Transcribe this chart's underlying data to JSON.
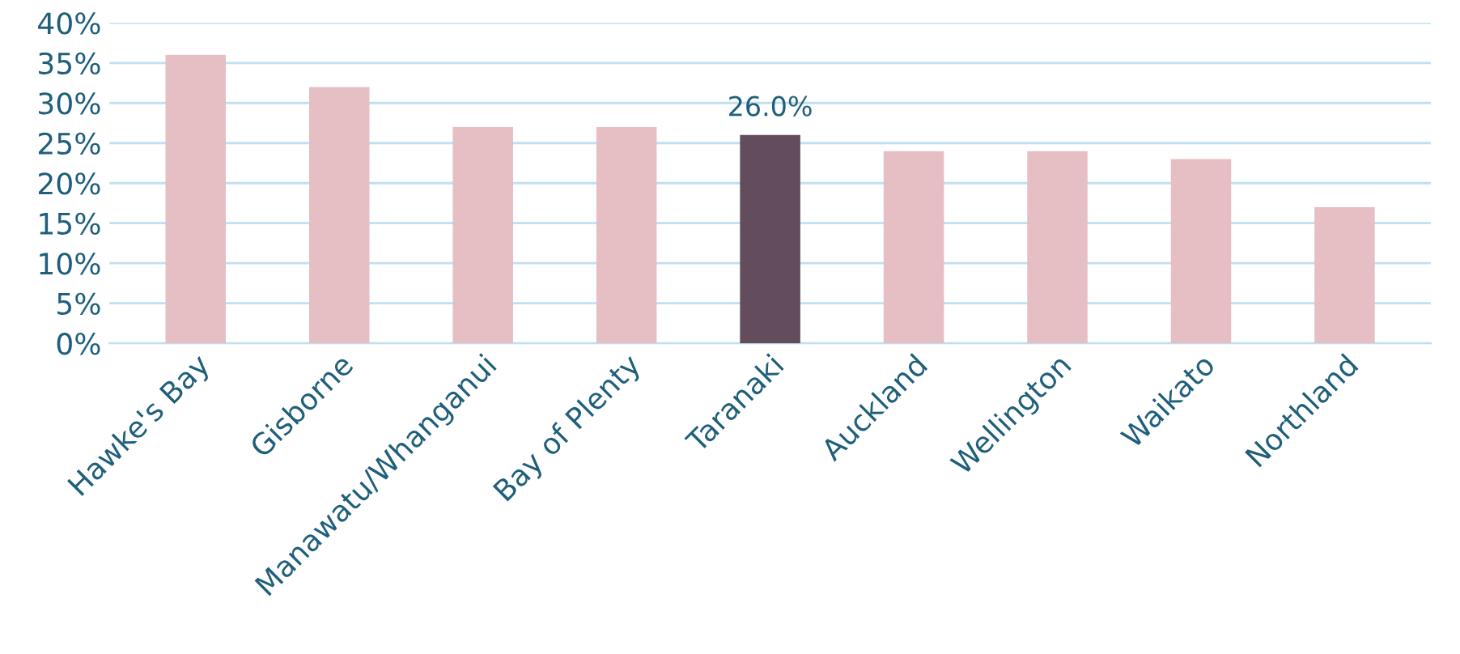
{
  "chart_data": {
    "type": "bar",
    "categories": [
      "Hawke's Bay",
      "Gisborne",
      "Manawatu/Whanganui",
      "Bay of Plenty",
      "Taranaki",
      "Auckland",
      "Wellington",
      "Waikato",
      "Northland"
    ],
    "values": [
      36,
      32,
      27,
      27,
      26,
      24,
      24,
      23,
      17
    ],
    "colors": [
      "#e6bfc4",
      "#e6bfc4",
      "#e6bfc4",
      "#e6bfc4",
      "#634d5c",
      "#e6bfc4",
      "#e6bfc4",
      "#e6bfc4",
      "#e6bfc4"
    ],
    "value_labels": [
      null,
      null,
      null,
      null,
      "26.0%",
      null,
      null,
      null,
      null
    ],
    "ylim": [
      0,
      40
    ],
    "yticks": [
      {
        "value": 0,
        "label": "0%"
      },
      {
        "value": 5,
        "label": "5%"
      },
      {
        "value": 10,
        "label": "10%"
      },
      {
        "value": 15,
        "label": "15%"
      },
      {
        "value": 20,
        "label": "20%"
      },
      {
        "value": 25,
        "label": "25%"
      },
      {
        "value": 30,
        "label": "30%"
      },
      {
        "value": 35,
        "label": "35%"
      },
      {
        "value": 40,
        "label": "40%"
      }
    ],
    "grid": "y",
    "legend": false
  }
}
